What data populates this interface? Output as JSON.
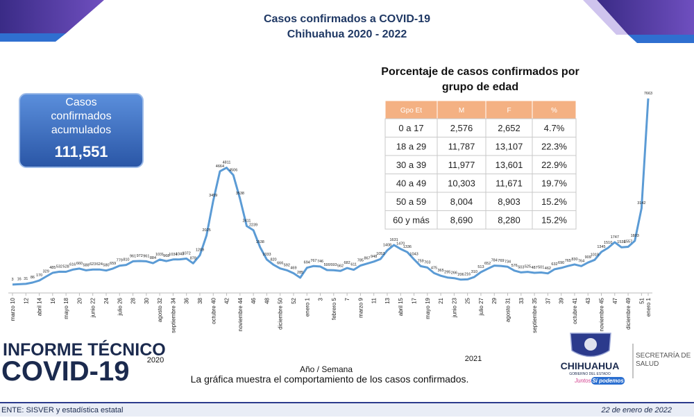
{
  "header": {
    "title": "Casos confirmados a COVID-19",
    "subtitle": "Chihuahua 2020 - 2022"
  },
  "summary_box": {
    "label": [
      "Casos",
      "confirmados",
      "acumulados"
    ],
    "value": "111,551"
  },
  "age_table": {
    "title": [
      "Porcentaje de casos confirmados por",
      "grupo de edad"
    ],
    "columns": [
      "Gpo Et",
      "M",
      "F",
      "%"
    ],
    "rows": [
      [
        "0 a 17",
        "2,576",
        "2,652",
        "4.7%"
      ],
      [
        "18 a 29",
        "11,787",
        "13,107",
        "22.3%"
      ],
      [
        "30 a 39",
        "11,977",
        "13,601",
        "22.9%"
      ],
      [
        "40 a 49",
        "10,303",
        "11,671",
        "19.7%"
      ],
      [
        "50 a 59",
        "8,004",
        "8,903",
        "15.2%"
      ],
      [
        "60 y más",
        "8,690",
        "8,280",
        "15.2%"
      ]
    ]
  },
  "chart_data": {
    "type": "line",
    "color": "#5b9bd5",
    "ylim": [
      0,
      8000
    ],
    "x_label": "Año / Semana",
    "year_labels": [
      "2020",
      "2021"
    ],
    "caption": "La gráfica muestra el comportamiento de los casos confirmados.",
    "categories": [
      "marzo 10",
      null,
      "12",
      null,
      "abril 14",
      null,
      "16",
      null,
      "mayo 18",
      null,
      "20",
      null,
      "junio 22",
      null,
      "24",
      null,
      "julio 26",
      null,
      "28",
      null,
      "30",
      null,
      "agosto 32",
      null,
      "septiembre 34",
      null,
      "36",
      null,
      "38",
      null,
      "octubre 40",
      null,
      "42",
      null,
      "noviembre 44",
      null,
      "46",
      null,
      "48",
      null,
      "diciembre 50",
      null,
      "52",
      null,
      "enero 1",
      null,
      "3",
      null,
      "febrero 5",
      null,
      "7",
      null,
      "marzo 9",
      null,
      "11",
      null,
      "13",
      null,
      "abril 15",
      null,
      "17",
      null,
      "mayo 19",
      null,
      "21",
      null,
      "junio 23",
      null,
      "25",
      null,
      "julio 27",
      null,
      "29",
      null,
      "agosto 31",
      null,
      "33",
      null,
      "septiembre 35",
      null,
      "37",
      null,
      "39",
      null,
      "octubre 41",
      null,
      "43",
      null,
      "noviembre 45",
      null,
      "47",
      null,
      "diciembre 49",
      null,
      "51",
      "enero 1"
    ],
    "values": [
      3,
      16,
      31,
      86,
      170,
      329,
      485,
      532,
      528,
      616,
      660,
      588,
      623,
      624,
      580,
      659,
      779,
      810,
      961,
      972,
      961,
      884,
      1031,
      968,
      1034,
      1040,
      1072,
      878,
      1209,
      2025,
      3459,
      4664,
      4811,
      4506,
      3538,
      2411,
      2239,
      1538,
      1033,
      820,
      666,
      592,
      469,
      285,
      694,
      767,
      746,
      599,
      593,
      562,
      682,
      611,
      785,
      867,
      948,
      1053,
      1408,
      1631,
      1470,
      1336,
      1043,
      759,
      703,
      475,
      365,
      295,
      266,
      206,
      216,
      310,
      513,
      652,
      784,
      769,
      734,
      576,
      503,
      525,
      487,
      501,
      462,
      632,
      690,
      765,
      830,
      764,
      909,
      1019,
      1345,
      1510,
      1747,
      1538,
      1557,
      1803,
      3142,
      7663
    ]
  },
  "branding": {
    "report": [
      "INFORME TÉCNICO",
      "COVID-19"
    ],
    "state": "CHIHUAHUA",
    "government": "GOBIERNO DEL ESTADO",
    "slogan": [
      "Juntos",
      "Sí podemos"
    ],
    "department": [
      "SECRETARÍA DE",
      "SALUD"
    ]
  },
  "footer": {
    "source": "ENTE: SISVER y estadística estatal",
    "date": "22 de enero de 2022"
  }
}
